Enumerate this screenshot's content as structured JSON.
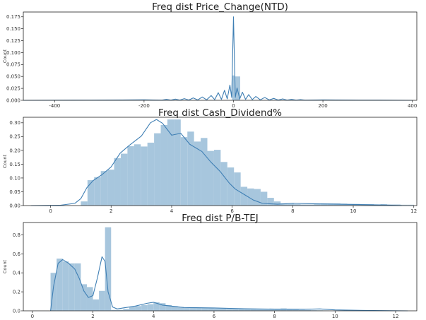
{
  "chart_data": [
    {
      "type": "histogram",
      "title": "Freq dist Price_Change(NTD)",
      "ylabel": "Count",
      "xlabel": "",
      "xlim": [
        -470,
        410
      ],
      "ylim": [
        0,
        0.185
      ],
      "xticks": [
        -400,
        -200,
        0,
        200,
        400
      ],
      "yticks": [
        0.0,
        0.025,
        0.05,
        0.075,
        0.1,
        0.125,
        0.15,
        0.175
      ],
      "yticklabels": [
        "0.000",
        "0.025",
        "0.050",
        "0.075",
        "0.100",
        "0.125",
        "0.150",
        "0.175"
      ],
      "bar_color": "#a7c6dd",
      "line_color": "#3f7fb4",
      "bars": [
        {
          "x0": -3,
          "x1": 2,
          "h": 0.052
        },
        {
          "x0": 2,
          "x1": 15,
          "h": 0.05
        }
      ],
      "kde": [
        [
          -470,
          0.0
        ],
        [
          -360,
          0.0002
        ],
        [
          -250,
          0.0006
        ],
        [
          -200,
          0.001
        ],
        [
          -160,
          0.0003
        ],
        [
          -150,
          0.002
        ],
        [
          -140,
          0.0003
        ],
        [
          -130,
          0.0025
        ],
        [
          -120,
          0.0004
        ],
        [
          -110,
          0.0035
        ],
        [
          -100,
          0.0005
        ],
        [
          -90,
          0.005
        ],
        [
          -80,
          0.0007
        ],
        [
          -70,
          0.007
        ],
        [
          -60,
          0.001
        ],
        [
          -50,
          0.01
        ],
        [
          -42,
          0.0015
        ],
        [
          -34,
          0.016
        ],
        [
          -27,
          0.002
        ],
        [
          -20,
          0.021
        ],
        [
          -14,
          0.003
        ],
        [
          -8,
          0.032
        ],
        [
          -4,
          0.006
        ],
        [
          0,
          0.175
        ],
        [
          4,
          0.006
        ],
        [
          8,
          0.026
        ],
        [
          14,
          0.003
        ],
        [
          20,
          0.017
        ],
        [
          27,
          0.002
        ],
        [
          34,
          0.012
        ],
        [
          42,
          0.0015
        ],
        [
          50,
          0.008
        ],
        [
          60,
          0.001
        ],
        [
          70,
          0.006
        ],
        [
          80,
          0.0007
        ],
        [
          90,
          0.004
        ],
        [
          100,
          0.0005
        ],
        [
          110,
          0.003
        ],
        [
          120,
          0.0004
        ],
        [
          130,
          0.002
        ],
        [
          140,
          0.0003
        ],
        [
          150,
          0.0015
        ],
        [
          160,
          0.0003
        ],
        [
          200,
          0.0008
        ],
        [
          260,
          0.0004
        ],
        [
          330,
          0.0002
        ],
        [
          400,
          0.0
        ]
      ]
    },
    {
      "type": "histogram",
      "title": "Freq dist Cash_Dividend%",
      "ylabel": "Count",
      "xlabel": "",
      "xlim": [
        -0.9,
        12.1
      ],
      "ylim": [
        0,
        0.32
      ],
      "xticks": [
        0,
        2,
        4,
        6,
        8,
        10,
        12
      ],
      "yticks": [
        0.0,
        0.05,
        0.1,
        0.15,
        0.2,
        0.25,
        0.3
      ],
      "yticklabels": [
        "0.00",
        "0.05",
        "0.10",
        "0.15",
        "0.20",
        "0.25",
        "0.30"
      ],
      "bar_color": "#a7c6dd",
      "line_color": "#3f7fb4",
      "bar_start": 1.0,
      "bar_width": 0.22,
      "bar_heights": [
        0.015,
        0.092,
        0.103,
        0.125,
        0.13,
        0.172,
        0.188,
        0.215,
        0.222,
        0.214,
        0.228,
        0.262,
        0.292,
        0.312,
        0.312,
        0.248,
        0.268,
        0.232,
        0.245,
        0.198,
        0.202,
        0.158,
        0.138,
        0.12,
        0.068,
        0.062,
        0.06,
        0.05,
        0.028,
        0.015,
        0.008,
        0.006,
        0.005,
        0.004,
        0.004,
        0.006,
        0.008,
        0.008,
        0.008,
        0.007,
        0.006,
        0.006,
        0.005,
        0.005,
        0.004,
        0.005,
        0.004,
        0.004,
        0.003,
        0.003
      ],
      "kde": [
        [
          -0.65,
          0.0
        ],
        [
          0.3,
          0.001
        ],
        [
          0.8,
          0.008
        ],
        [
          1.0,
          0.025
        ],
        [
          1.2,
          0.065
        ],
        [
          1.4,
          0.09
        ],
        [
          1.7,
          0.112
        ],
        [
          2.0,
          0.14
        ],
        [
          2.3,
          0.19
        ],
        [
          2.6,
          0.218
        ],
        [
          3.0,
          0.252
        ],
        [
          3.3,
          0.3
        ],
        [
          3.5,
          0.312
        ],
        [
          3.7,
          0.298
        ],
        [
          4.0,
          0.255
        ],
        [
          4.3,
          0.262
        ],
        [
          4.6,
          0.222
        ],
        [
          5.0,
          0.196
        ],
        [
          5.3,
          0.157
        ],
        [
          5.6,
          0.124
        ],
        [
          5.9,
          0.082
        ],
        [
          6.1,
          0.06
        ],
        [
          6.4,
          0.04
        ],
        [
          6.7,
          0.02
        ],
        [
          7.0,
          0.008
        ],
        [
          7.5,
          0.005
        ],
        [
          8.0,
          0.008
        ],
        [
          8.5,
          0.007
        ],
        [
          9.0,
          0.006
        ],
        [
          9.5,
          0.005
        ],
        [
          10.0,
          0.004
        ],
        [
          10.5,
          0.003
        ],
        [
          11.0,
          0.002
        ],
        [
          11.6,
          0.0
        ]
      ]
    },
    {
      "type": "histogram",
      "title": "Freq dist P/B-TEJ",
      "ylabel": "Count",
      "xlabel": "",
      "xlim": [
        -0.3,
        12.7
      ],
      "ylim": [
        0,
        0.93
      ],
      "xticks": [
        0,
        2,
        4,
        6,
        8,
        10,
        12
      ],
      "yticks": [
        0.0,
        0.2,
        0.4,
        0.6,
        0.8
      ],
      "yticklabels": [
        "0.0",
        "0.2",
        "0.4",
        "0.6",
        "0.8"
      ],
      "bar_color": "#a7c6dd",
      "line_color": "#3f7fb4",
      "bar_start": 0.6,
      "bar_width": 0.2,
      "bar_heights": [
        0.4,
        0.55,
        0.52,
        0.5,
        0.5,
        0.28,
        0.25,
        0.12,
        0.21,
        0.88,
        0.01,
        0.01,
        0.02,
        0.04,
        0.05,
        0.06,
        0.07,
        0.09,
        0.08,
        0.06,
        0.05,
        0.04,
        0.03,
        0.03,
        0.03,
        0.03,
        0.03,
        0.025,
        0.025,
        0.02,
        0.02,
        0.02,
        0.018,
        0.018,
        0.016,
        0.015,
        0.015,
        0.02,
        0.025,
        0.02,
        0.015,
        0.01,
        0.008,
        0.006,
        0.005,
        0.004,
        0.003,
        0.002,
        0.002,
        0.001
      ],
      "kde": [
        [
          0.6,
          0.0
        ],
        [
          0.7,
          0.26
        ],
        [
          0.85,
          0.5
        ],
        [
          1.0,
          0.54
        ],
        [
          1.2,
          0.5
        ],
        [
          1.4,
          0.44
        ],
        [
          1.55,
          0.34
        ],
        [
          1.7,
          0.21
        ],
        [
          1.85,
          0.14
        ],
        [
          2.0,
          0.16
        ],
        [
          2.15,
          0.35
        ],
        [
          2.3,
          0.57
        ],
        [
          2.4,
          0.52
        ],
        [
          2.5,
          0.2
        ],
        [
          2.65,
          0.04
        ],
        [
          2.8,
          0.02
        ],
        [
          3.0,
          0.03
        ],
        [
          3.4,
          0.05
        ],
        [
          3.8,
          0.08
        ],
        [
          4.0,
          0.09
        ],
        [
          4.3,
          0.06
        ],
        [
          5.0,
          0.035
        ],
        [
          6.0,
          0.03
        ],
        [
          7.0,
          0.022
        ],
        [
          8.0,
          0.018
        ],
        [
          9.0,
          0.016
        ],
        [
          9.5,
          0.02
        ],
        [
          10.0,
          0.01
        ],
        [
          11.0,
          0.004
        ],
        [
          12.4,
          0.0
        ]
      ]
    }
  ]
}
